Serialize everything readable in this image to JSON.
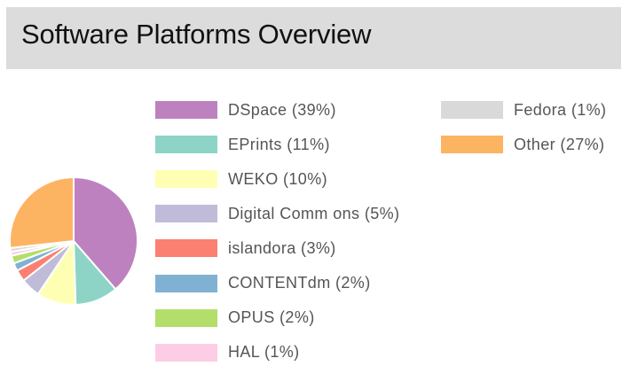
{
  "header": {
    "title": "Software Platforms Overview"
  },
  "chart_data": {
    "type": "pie",
    "title": "Software Platforms Overview",
    "categories": [
      "DSpace",
      "EPrints",
      "WEKO",
      "Digital Commons",
      "islandora",
      "CONTENTdm",
      "OPUS",
      "HAL",
      "Fedora",
      "Other"
    ],
    "values": [
      39,
      11,
      10,
      5,
      3,
      2,
      2,
      1,
      1,
      27
    ],
    "colors": [
      "#be81c0",
      "#8dd4c7",
      "#ffffb3",
      "#bfbbd9",
      "#fb8072",
      "#80b1d3",
      "#b3de69",
      "#fccde5",
      "#d9d9d9",
      "#fdb462"
    ],
    "legend": {
      "placement": "right",
      "labels": [
        "DSpace (39%)",
        "EPrints (11%)",
        "WEKO (10%)",
        "Digital Comm ons (5%)",
        "islandora (3%)",
        "CONTENTdm (2%)",
        "OPUS (2%)",
        "HAL (1%)",
        "Fedora (1%)",
        "Other (27%)"
      ]
    }
  }
}
